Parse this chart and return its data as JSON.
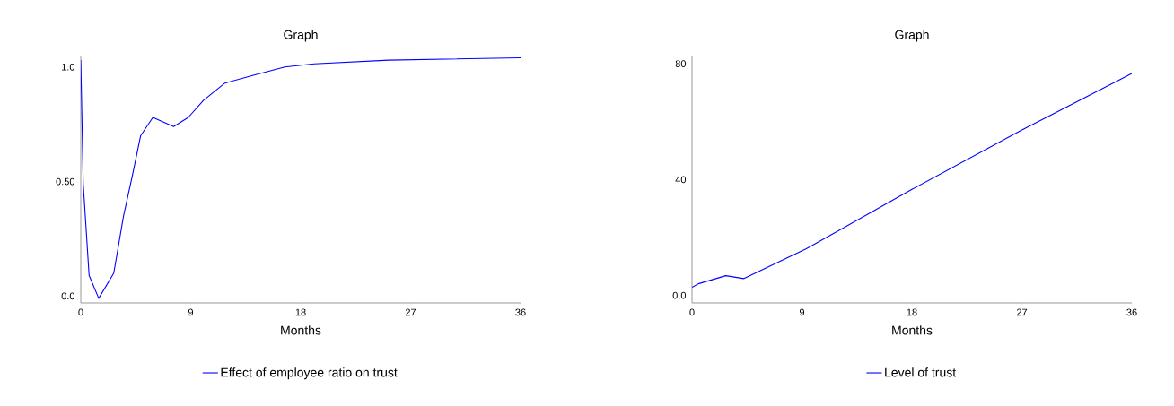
{
  "chart_data": [
    {
      "type": "line",
      "title": "Graph",
      "xlabel": "Months",
      "legend": "bottom",
      "xlim": [
        0,
        36
      ],
      "xticks": [
        0,
        9,
        18,
        27,
        36
      ],
      "ylim": [
        -0.03,
        1.05
      ],
      "yticks": [
        {
          "value": 0,
          "label": "0.0"
        },
        {
          "value": 0.5,
          "label": "0.50"
        },
        {
          "value": 1,
          "label": "1.0"
        }
      ],
      "x": [
        0,
        0.2,
        0.68,
        1.47,
        2.7,
        3.5,
        4.2,
        4.9,
        5.9,
        7.6,
        8.8,
        10.05,
        11.8,
        14.2,
        16.7,
        19.1,
        25.2,
        36
      ],
      "series": [
        {
          "name": "Effect of employee ratio on trust",
          "color": "#0000ff",
          "values": [
            1.03,
            0.49,
            0.09,
            -0.01,
            0.1,
            0.35,
            0.52,
            0.7,
            0.78,
            0.74,
            0.78,
            0.855,
            0.93,
            0.965,
            1.0,
            1.014,
            1.03,
            1.04
          ]
        }
      ]
    },
    {
      "type": "line",
      "title": "Graph",
      "xlabel": "Months",
      "legend": "bottom",
      "xlim": [
        0,
        36
      ],
      "xticks": [
        0,
        9,
        18,
        27,
        36
      ],
      "ylim": [
        -2.6,
        82.8
      ],
      "yticks": [
        {
          "value": 0,
          "label": "0.0"
        },
        40,
        80
      ],
      "x": [
        0,
        0.58,
        2.76,
        4.25,
        9.36,
        18.0,
        26.9,
        36
      ],
      "series": [
        {
          "name": "Level of trust",
          "color": "#0000ff",
          "values": [
            2.8,
            4.1,
            6.8,
            5.8,
            16.1,
            36.6,
            56.9,
            76.6
          ]
        }
      ]
    }
  ]
}
